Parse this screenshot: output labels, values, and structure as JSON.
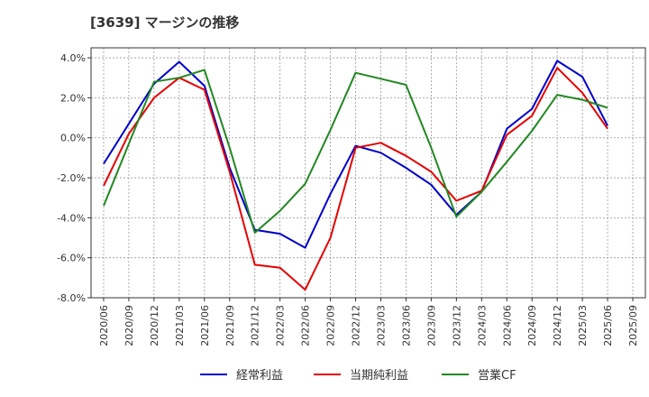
{
  "chart_data": {
    "type": "line",
    "title": "[3639]  マージンの推移",
    "xlabel": "",
    "ylabel": "",
    "ylim": [
      -8.0,
      4.5
    ],
    "yticks": [
      4.0,
      2.0,
      0.0,
      -2.0,
      -4.0,
      -6.0,
      -8.0
    ],
    "ytick_labels": [
      "4.0%",
      "2.0%",
      "0.0%",
      "-2.0%",
      "-4.0%",
      "-6.0%",
      "-8.0%"
    ],
    "x_labels": [
      "2020/06",
      "2020/09",
      "2020/12",
      "2021/03",
      "2021/06",
      "2021/09",
      "2021/12",
      "2022/03",
      "2022/06",
      "2022/09",
      "2022/12",
      "2023/03",
      "2023/06",
      "2023/09",
      "2023/12",
      "2024/03",
      "2024/06",
      "2024/09",
      "2024/12",
      "2025/03",
      "2025/06",
      "2025/09"
    ],
    "grid": true,
    "legend_position": "bottom",
    "series": [
      {
        "name": "経常利益",
        "color": "#0000cc",
        "values": [
          -1.3,
          0.7,
          2.7,
          3.8,
          2.6,
          -1.5,
          -4.6,
          -4.8,
          -5.5,
          -2.8,
          -0.4,
          -0.75,
          -1.5,
          -2.35,
          -3.85,
          -2.7,
          0.45,
          1.45,
          3.85,
          3.05,
          0.6,
          null
        ]
      },
      {
        "name": "当期純利益",
        "color": "#e60000",
        "values": [
          -2.4,
          0.2,
          2.0,
          3.0,
          2.4,
          -1.7,
          -6.35,
          -6.5,
          -7.6,
          -5.0,
          -0.5,
          -0.25,
          -0.9,
          -1.7,
          -3.15,
          -2.65,
          0.15,
          1.1,
          3.5,
          2.25,
          0.45,
          null
        ]
      },
      {
        "name": "営業CF",
        "color": "#228822",
        "values": [
          -3.4,
          -0.3,
          2.8,
          3.0,
          3.4,
          -0.5,
          -4.75,
          -3.65,
          -2.3,
          0.4,
          3.25,
          2.95,
          2.65,
          -0.5,
          -3.95,
          -2.7,
          -1.2,
          0.35,
          2.15,
          1.9,
          1.5,
          null
        ]
      }
    ]
  }
}
